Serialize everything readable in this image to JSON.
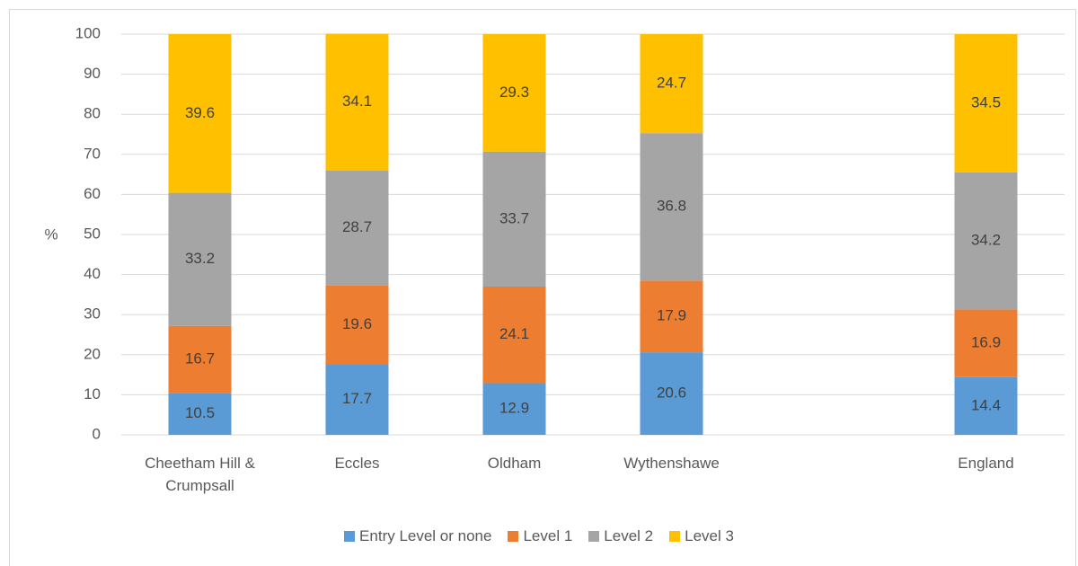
{
  "chart_data": {
    "type": "stacked_bar",
    "y_label": "%",
    "categories": [
      "Cheetham Hill & Crumpsall",
      "Eccles",
      "Oldham",
      "Wythenshawe",
      null,
      "England"
    ],
    "series": [
      {
        "name": "Entry Level or none",
        "color": "#5b9bd5",
        "values": [
          10.5,
          17.7,
          12.9,
          20.6,
          null,
          14.4
        ]
      },
      {
        "name": "Level 1",
        "color": "#ed7d31",
        "values": [
          16.7,
          19.6,
          24.1,
          17.9,
          null,
          16.9
        ]
      },
      {
        "name": "Level 2",
        "color": "#a5a5a5",
        "values": [
          33.2,
          28.7,
          33.7,
          36.8,
          null,
          34.2
        ]
      },
      {
        "name": "Level 3",
        "color": "#ffc000",
        "values": [
          39.6,
          34.1,
          29.3,
          24.7,
          null,
          34.5
        ]
      }
    ],
    "ylim": [
      0,
      100
    ],
    "yticks": [
      0,
      10,
      20,
      30,
      40,
      50,
      60,
      70,
      80,
      90,
      100
    ],
    "grid": true,
    "legend": "bottom"
  }
}
